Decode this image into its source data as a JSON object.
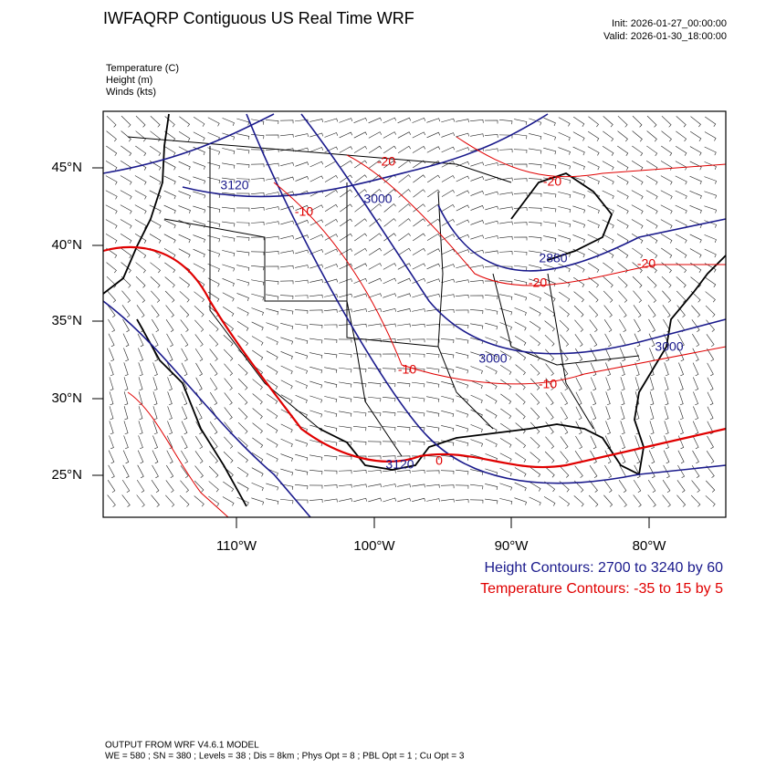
{
  "header": {
    "title": "IWFAQRP Contiguous US Real Time WRF",
    "init": "Init: 2026-01-27_00:00:00",
    "valid": "Valid: 2026-01-30_18:00:00"
  },
  "fields": [
    "Temperature   (C)",
    "Height   (m)",
    "Winds   (kts)"
  ],
  "lat_labels": [
    "45°N",
    "40°N",
    "35°N",
    "30°N",
    "25°N"
  ],
  "lon_labels": [
    "110°W",
    "100°W",
    "90°W",
    "80°W"
  ],
  "contour_labels": [
    {
      "text": "3120",
      "color": "#1a1a8c"
    },
    {
      "text": "3000",
      "color": "#1a1a8c"
    },
    {
      "text": "-20",
      "color": "#e00000"
    },
    {
      "text": "-20",
      "color": "#e00000"
    },
    {
      "text": "-10",
      "color": "#e00000"
    },
    {
      "text": "2880",
      "color": "#1a1a8c"
    },
    {
      "text": "-20",
      "color": "#e00000"
    },
    {
      "text": "-20",
      "color": "#e00000"
    },
    {
      "text": "3000",
      "color": "#1a1a8c"
    },
    {
      "text": "-10",
      "color": "#e00000"
    },
    {
      "text": "-10",
      "color": "#e00000"
    },
    {
      "text": "3000",
      "color": "#1a1a8c"
    },
    {
      "text": "3120",
      "color": "#1a1a8c"
    },
    {
      "text": "0",
      "color": "#e00000"
    }
  ],
  "legend": {
    "height": "Height Contours: 2700 to 3240 by 60",
    "temperature": "Temperature Contours: -35 to 15 by 5"
  },
  "footer": [
    "OUTPUT FROM WRF V4.6.1 MODEL",
    "WE = 580 ; SN = 380 ; Levels = 38 ; Dis = 8km ; Phys Opt = 8 ; PBL Opt = 1 ; Cu Opt = 3"
  ]
}
